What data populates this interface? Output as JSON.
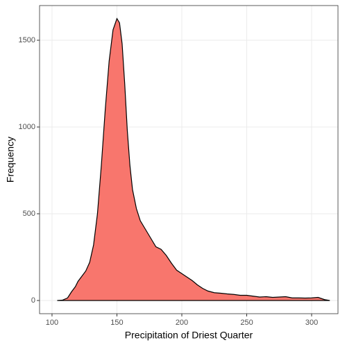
{
  "chart_data": {
    "type": "area",
    "x_label": "Precipitation of Driest Quarter",
    "y_label": "Frequency",
    "x": [
      104,
      108,
      112,
      115,
      118,
      120,
      123,
      126,
      129,
      132,
      135,
      138,
      141,
      144,
      147,
      150,
      152,
      154,
      156,
      158,
      160,
      162,
      165,
      168,
      172,
      176,
      180,
      184,
      188,
      192,
      196,
      200,
      204,
      208,
      212,
      216,
      220,
      225,
      230,
      235,
      240,
      245,
      250,
      255,
      260,
      265,
      270,
      275,
      280,
      285,
      290,
      295,
      300,
      305,
      310,
      314
    ],
    "values": [
      0,
      2,
      15,
      50,
      80,
      110,
      140,
      170,
      220,
      320,
      500,
      780,
      1100,
      1380,
      1560,
      1625,
      1600,
      1480,
      1250,
      980,
      780,
      640,
      530,
      460,
      410,
      360,
      310,
      295,
      260,
      215,
      175,
      155,
      135,
      115,
      90,
      70,
      55,
      45,
      42,
      38,
      35,
      30,
      30,
      25,
      20,
      22,
      18,
      20,
      22,
      15,
      15,
      14,
      15,
      18,
      5,
      0
    ],
    "color": "#F8766D",
    "xlim": [
      90.4,
      320.3
    ],
    "xticks": [
      100,
      150,
      200,
      250,
      300
    ],
    "ylim": [
      -76,
      1700
    ],
    "yticks": [
      0,
      500,
      1000,
      1500
    ],
    "grid": true
  }
}
